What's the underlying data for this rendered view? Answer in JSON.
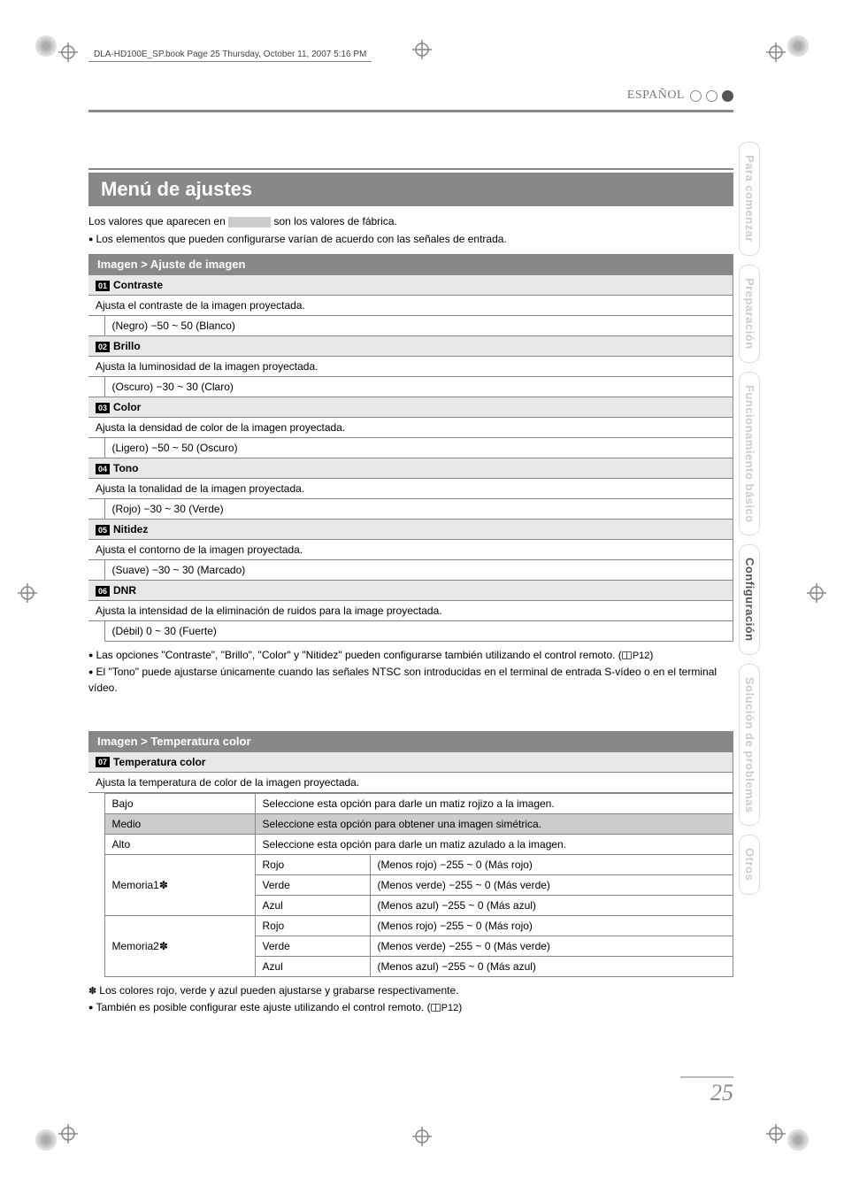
{
  "book_header": "DLA-HD100E_SP.book  Page 25  Thursday, October 11, 2007  5:16 PM",
  "language_label": "ESPAÑOL",
  "side_tabs": [
    {
      "label": "Para comenzar",
      "active": false
    },
    {
      "label": "Preparación",
      "active": false
    },
    {
      "label": "Funcionamiento básico",
      "active": false
    },
    {
      "label": "Configuración",
      "active": true
    },
    {
      "label": "Solución de problemas",
      "active": false
    },
    {
      "label": "Otros",
      "active": false
    }
  ],
  "section_title": "Menú de ajustes",
  "intro_before": "Los valores que aparecen en ",
  "intro_after": " son los valores de fábrica.",
  "intro_bullet": "Los elementos que pueden configurarse varían de acuerdo con las señales de entrada.",
  "sub1_header": "Imagen > Ajuste de imagen",
  "items": [
    {
      "num": "01",
      "name": "Contraste",
      "desc": "Ajusta el contraste de la imagen proyectada.",
      "range": "(Negro) −50 ~ 50 (Blanco)"
    },
    {
      "num": "02",
      "name": "Brillo",
      "desc": "Ajusta la luminosidad de la imagen proyectada.",
      "range": "(Oscuro) −30 ~ 30 (Claro)"
    },
    {
      "num": "03",
      "name": "Color",
      "desc": "Ajusta la densidad de color de la imagen proyectada.",
      "range": "(Ligero) −50 ~ 50 (Oscuro)"
    },
    {
      "num": "04",
      "name": "Tono",
      "desc": "Ajusta la tonalidad de la imagen proyectada.",
      "range": "(Rojo) −30 ~ 30 (Verde)"
    },
    {
      "num": "05",
      "name": "Nitidez",
      "desc": "Ajusta el contorno de la imagen proyectada.",
      "range": "(Suave) −30 ~ 30 (Marcado)"
    },
    {
      "num": "06",
      "name": "DNR",
      "desc": "Ajusta la intensidad de la eliminación de ruidos para la image proyectada.",
      "range": "(Débil) 0 ~ 30 (Fuerte)"
    }
  ],
  "note1": "Las opciones \"Contraste\", \"Brillo\", \"Color\" y \"Nitidez\" pueden configurarse también utilizando el control remoto. (",
  "note1_ref": "P12",
  "note1_close": ")",
  "note2": "El \"Tono\" puede ajustarse únicamente cuando las señales NTSC son introducidas en el terminal de entrada S-vídeo o en el terminal vídeo.",
  "sub2_header": "Imagen > Temperatura color",
  "temp_num": "07",
  "temp_name": "Temperatura color",
  "temp_desc": "Ajusta la temperatura de color de la imagen proyectada.",
  "temp_rows": [
    {
      "opt": "Bajo",
      "desc": "Seleccione esta opción para darle un matiz rojizo a la imagen.",
      "hl": false
    },
    {
      "opt": "Medio",
      "desc": "Seleccione esta opción para obtener una imagen simétrica.",
      "hl": true
    },
    {
      "opt": "Alto",
      "desc": "Seleccione esta opción para darle un matiz azulado a la imagen.",
      "hl": false
    }
  ],
  "mem_rows": [
    {
      "opt": "Memoria1✽",
      "channels": [
        {
          "c": "Rojo",
          "r": "(Menos rojo) −255 ~ 0 (Más rojo)"
        },
        {
          "c": "Verde",
          "r": "(Menos verde) −255 ~ 0 (Más verde)"
        },
        {
          "c": "Azul",
          "r": "(Menos azul) −255 ~ 0 (Más azul)"
        }
      ]
    },
    {
      "opt": "Memoria2✽",
      "channels": [
        {
          "c": "Rojo",
          "r": "(Menos rojo) −255 ~ 0 (Más rojo)"
        },
        {
          "c": "Verde",
          "r": "(Menos verde) −255 ~ 0 (Más verde)"
        },
        {
          "c": "Azul",
          "r": "(Menos azul) −255 ~ 0 (Más azul)"
        }
      ]
    }
  ],
  "footnote1": "Los colores rojo, verde y azul pueden ajustarse y grabarse respectivamente.",
  "footnote2": "También es posible configurar este ajuste utilizando el control remoto. (",
  "footnote2_ref": "P12",
  "footnote2_close": ")",
  "page_number": "25"
}
